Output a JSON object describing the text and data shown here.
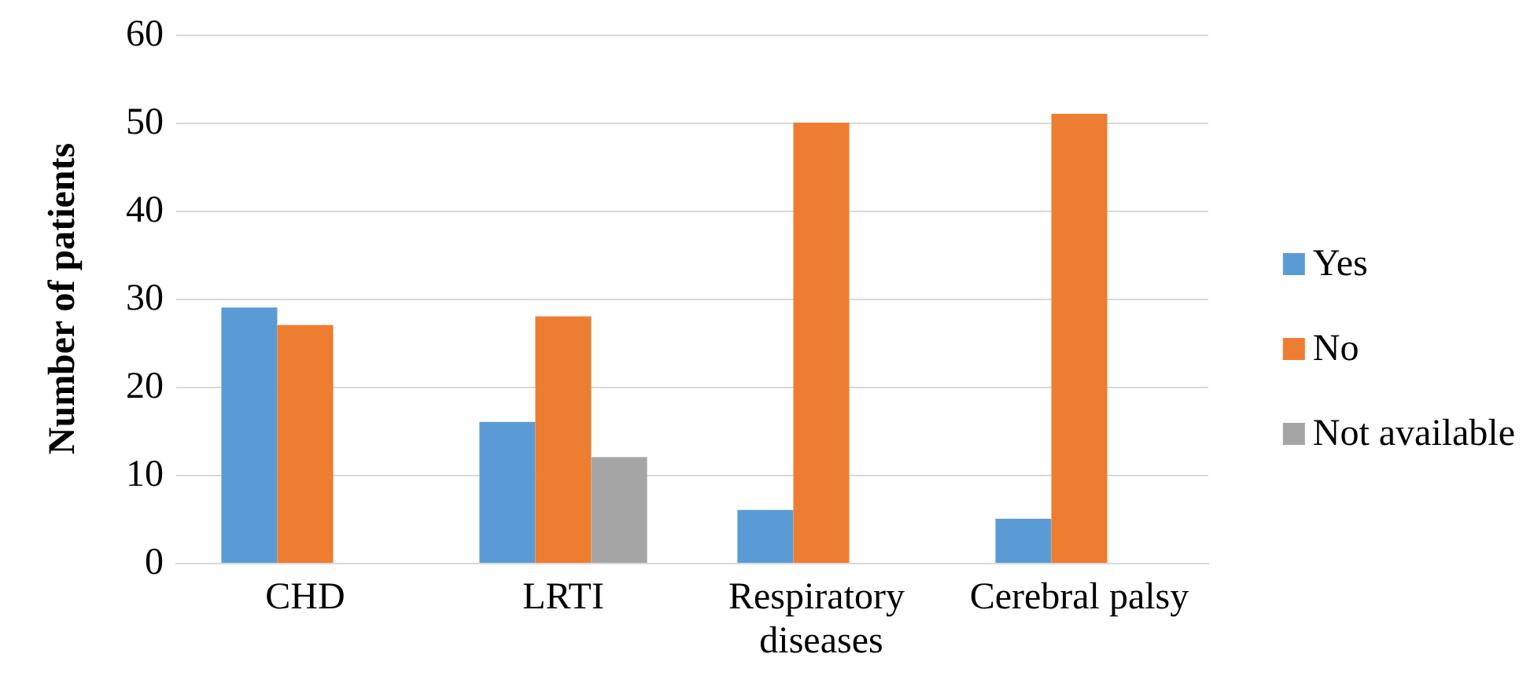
{
  "chart_data": {
    "type": "bar",
    "ylabel": "Number of patients",
    "categories": [
      "CHD",
      "LRTI",
      "Respiratory diseases",
      "Cerebral palsy"
    ],
    "series": [
      {
        "name": "Yes",
        "color": "#5b9bd5",
        "values": [
          29,
          16,
          6,
          5
        ]
      },
      {
        "name": "No",
        "color": "#ed7d31",
        "values": [
          27,
          28,
          50,
          51
        ]
      },
      {
        "name": "Not available",
        "color": "#a5a5a5",
        "values": [
          null,
          12,
          null,
          null
        ]
      }
    ],
    "ylim": [
      0,
      60
    ],
    "yticks": [
      0,
      10,
      20,
      30,
      40,
      50,
      60
    ],
    "grid": "y",
    "legend": "right"
  }
}
